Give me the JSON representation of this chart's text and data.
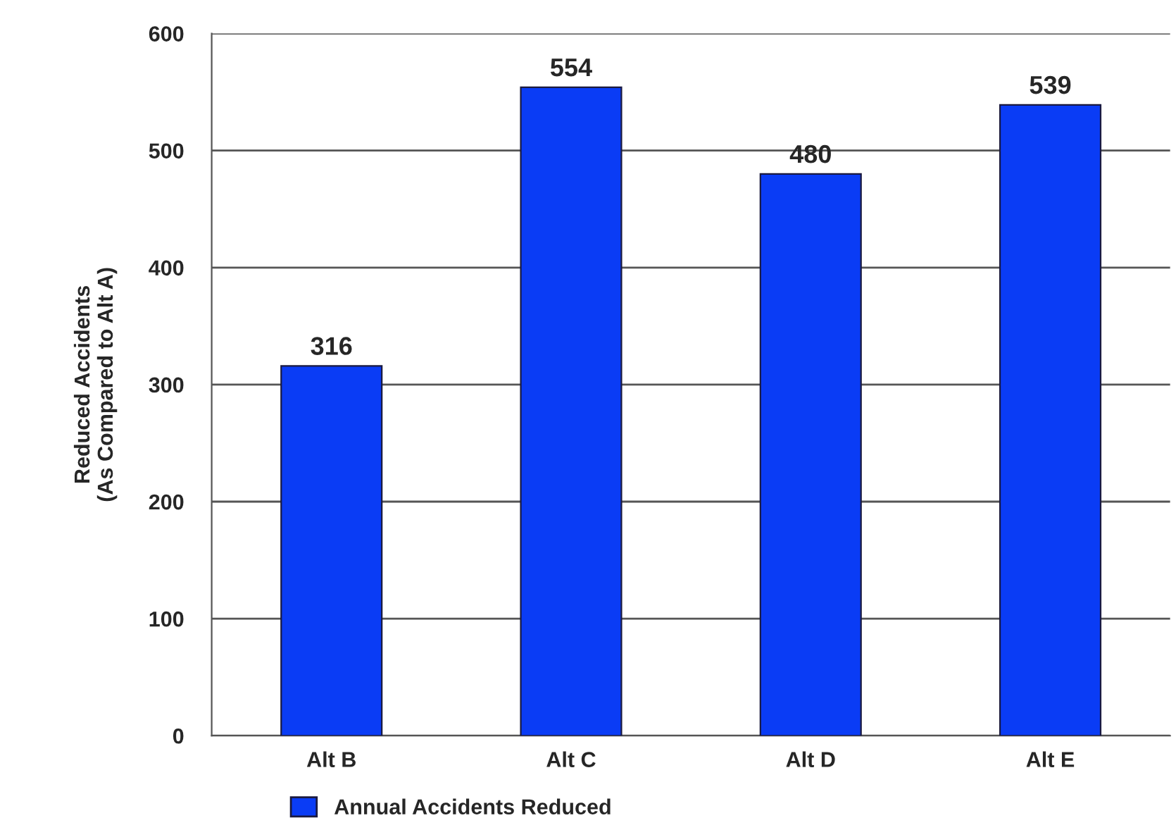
{
  "chart_data": {
    "type": "bar",
    "ylabel": "Reduced Accidents\n(As Compared to Alt A)",
    "categories": [
      "Alt B",
      "Alt C",
      "Alt D",
      "Alt E"
    ],
    "series": [
      {
        "name": "Annual Accidents Reduced",
        "color": "#0a3cf5",
        "values": [
          316,
          554,
          480,
          539
        ]
      }
    ],
    "ylim": [
      0,
      600
    ],
    "yticks": [
      0,
      100,
      200,
      300,
      400,
      500,
      600
    ],
    "grid": "y",
    "legend": "bottom",
    "data_labels": true
  }
}
